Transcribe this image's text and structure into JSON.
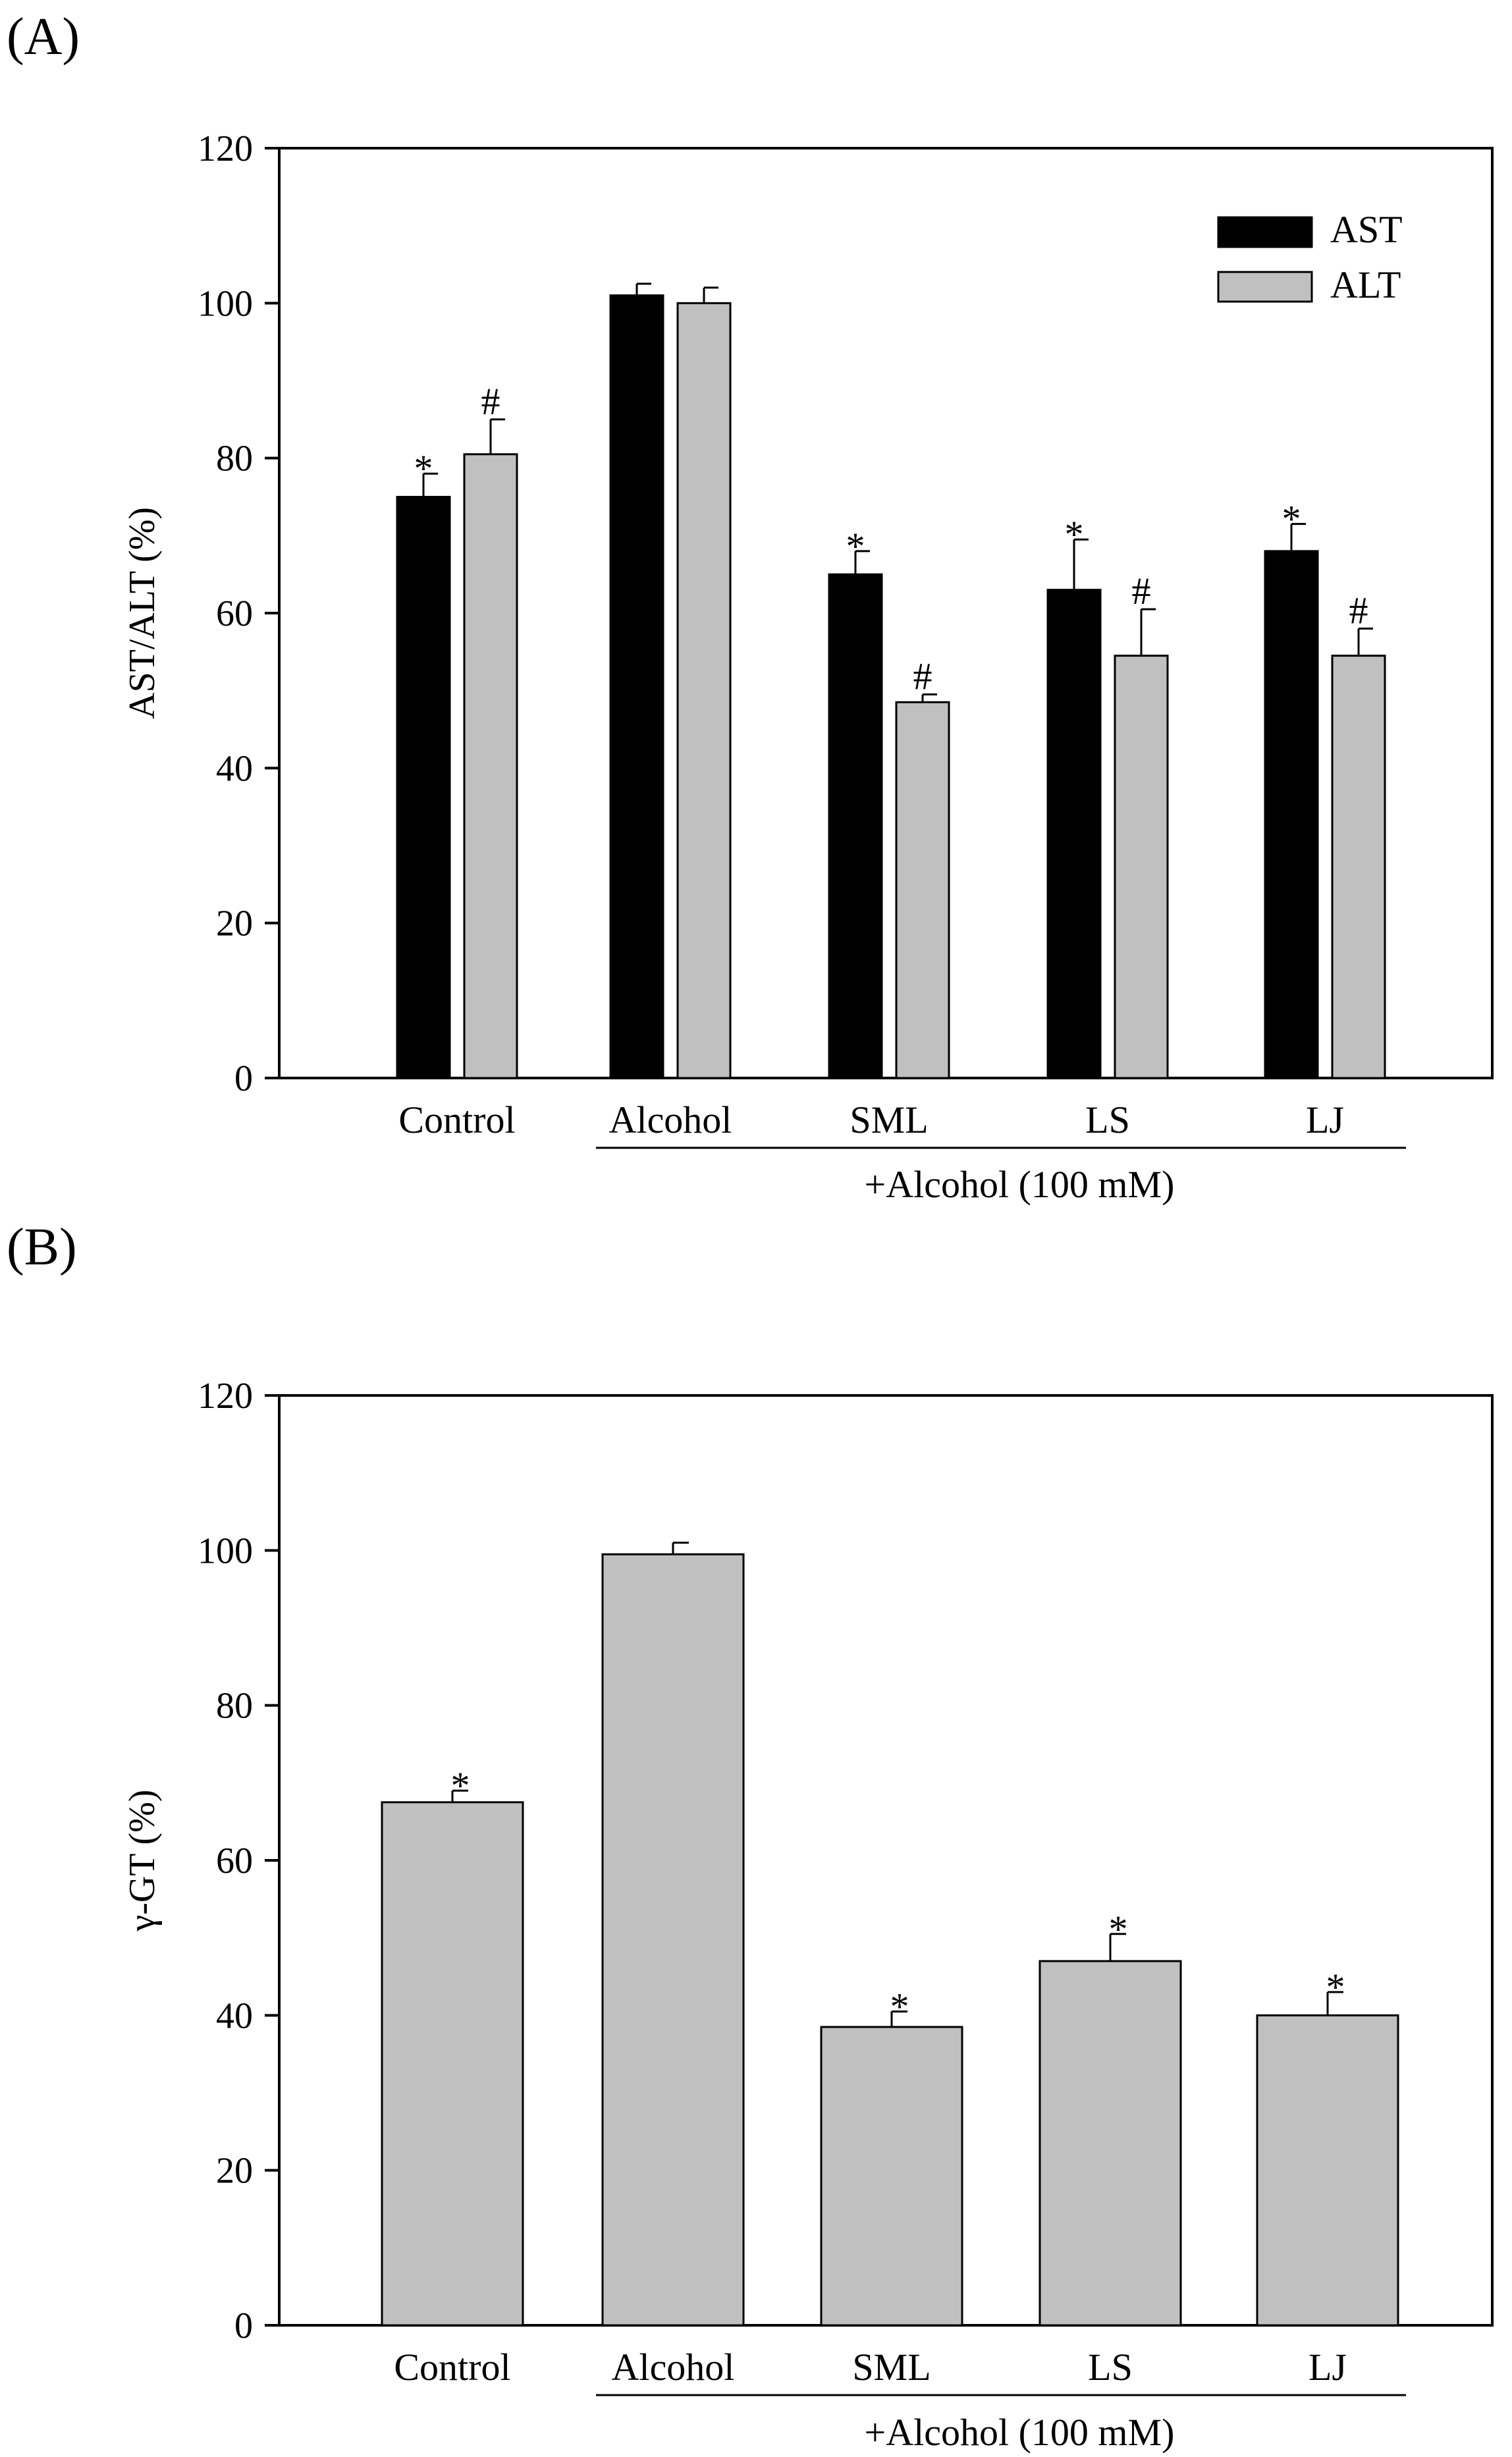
{
  "chart_data": [
    {
      "panel_label": "(A)",
      "type": "bar",
      "ylabel": "AST/ALT (%)",
      "ylim": [
        0,
        120
      ],
      "yticks": [
        "0",
        "20",
        "40",
        "60",
        "80",
        "100",
        "120"
      ],
      "categories": [
        "Control",
        "Alcohol",
        "SML",
        "LS",
        "LJ"
      ],
      "group_label": "+Alcohol (100 mM)",
      "legend_position": "top-right",
      "series": [
        {
          "name": "AST",
          "color": "#000000",
          "values": [
            75,
            101,
            65,
            63,
            68
          ],
          "errors": [
            3,
            1.5,
            3,
            6.5,
            3.5
          ],
          "annotations": [
            "*",
            "",
            "*",
            "*",
            "*"
          ]
        },
        {
          "name": "ALT",
          "color": "#c0c0c0",
          "values": [
            80.5,
            100,
            48.5,
            54.5,
            54.5
          ],
          "errors": [
            4.5,
            2,
            1,
            6,
            3.5
          ],
          "annotations": [
            "#",
            "",
            "#",
            "#",
            "#"
          ]
        }
      ]
    },
    {
      "panel_label": "(B)",
      "type": "bar",
      "ylabel": "γ-GT (%)",
      "ylim": [
        0,
        120
      ],
      "yticks": [
        "0",
        "20",
        "40",
        "60",
        "80",
        "100",
        "120"
      ],
      "categories": [
        "Control",
        "Alcohol",
        "SML",
        "LS",
        "LJ"
      ],
      "group_label": "+Alcohol (100 mM)",
      "series": [
        {
          "name": "γ-GT",
          "color": "#c0c0c0",
          "values": [
            67.5,
            99.5,
            38.5,
            47,
            40
          ],
          "errors": [
            1.5,
            1.5,
            2,
            3.5,
            3
          ],
          "annotations": [
            "*",
            "",
            "*",
            "*",
            "*"
          ]
        }
      ]
    }
  ]
}
